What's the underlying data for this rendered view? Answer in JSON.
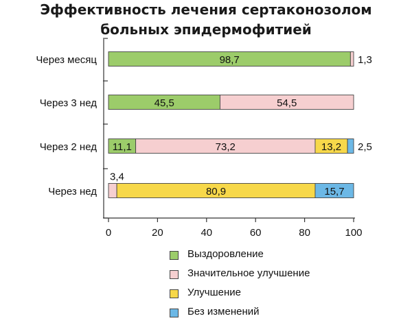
{
  "chart_data": {
    "type": "bar",
    "orientation": "horizontal",
    "stacked": true,
    "title": [
      "Эффективность лечения сертаконозолом",
      "больных эпидермофитией"
    ],
    "xlim": [
      0,
      100
    ],
    "xticks": [
      "0",
      "20",
      "40",
      "60",
      "80",
      "100"
    ],
    "grid": false,
    "legend_position": "bottom",
    "categories": [
      "Через месяц",
      "Через 3 нед",
      "Через 2 нед",
      "Через нед"
    ],
    "series": [
      {
        "name": "Выздоровление",
        "color": "#9ccc6a",
        "values": [
          98.7,
          45.5,
          11.1,
          0
        ]
      },
      {
        "name": "Значительное улучшение",
        "color": "#f6cfd0",
        "values": [
          1.3,
          54.5,
          73.2,
          3.4
        ]
      },
      {
        "name": "Улучшение",
        "color": "#f7d84a",
        "values": [
          0,
          0,
          13.2,
          80.9
        ]
      },
      {
        "name": "Без изменений",
        "color": "#6cb8e6",
        "values": [
          0,
          0,
          2.5,
          15.7
        ]
      }
    ],
    "labels": [
      [
        {
          "text": "98,7",
          "pos": "inside"
        },
        {
          "text": "1,3",
          "pos": "right"
        },
        null,
        null
      ],
      [
        {
          "text": "45,5",
          "pos": "inside"
        },
        {
          "text": "54,5",
          "pos": "inside"
        },
        null,
        null
      ],
      [
        {
          "text": "11,1",
          "pos": "inside"
        },
        {
          "text": "73,2",
          "pos": "inside"
        },
        {
          "text": "13,2",
          "pos": "inside"
        },
        {
          "text": "2,5",
          "pos": "right"
        }
      ],
      [
        null,
        {
          "text": "3,4",
          "pos": "above"
        },
        {
          "text": "80,9",
          "pos": "inside"
        },
        {
          "text": "15,7",
          "pos": "inside"
        }
      ]
    ]
  }
}
